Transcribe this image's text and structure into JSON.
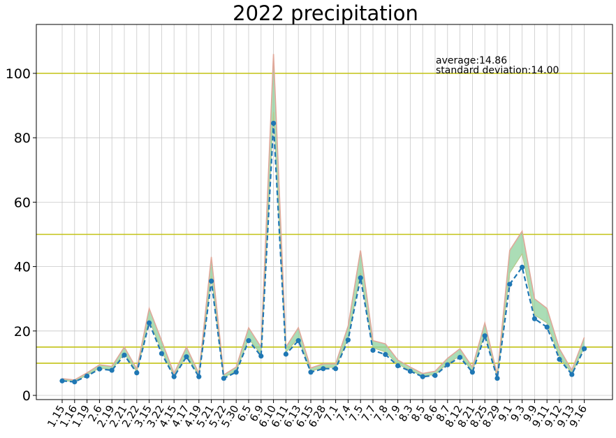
{
  "chart_data": {
    "type": "line",
    "title": "2022 precipitation",
    "xlabel": "",
    "ylabel": "",
    "ylim": [
      0,
      115
    ],
    "yticks": [
      0,
      20,
      40,
      60,
      80,
      100
    ],
    "grid": true,
    "reference_lines": [
      10,
      15,
      50,
      100
    ],
    "annotations": [
      "average:14.86",
      "standard deviation:14.00"
    ],
    "categories": [
      "1.15",
      "1.16",
      "1.19",
      "2.6",
      "2.19",
      "2.21",
      "2.22",
      "3.15",
      "3.22",
      "4.15",
      "4.17",
      "4.19",
      "5.21",
      "5.22",
      "5.30",
      "6.5",
      "6.9",
      "6.10",
      "6.11",
      "6.13",
      "6.15",
      "6.28",
      "7.1",
      "7.4",
      "7.5",
      "7.7",
      "7.8",
      "7.9",
      "8.3",
      "8.5",
      "8.6",
      "8.7",
      "8.12",
      "8.21",
      "8.25",
      "8.29",
      "9.1",
      "9.3",
      "9.9",
      "9.11",
      "9.12",
      "9.13",
      "9.16"
    ],
    "series": [
      {
        "values": [
          4.5,
          4.2,
          6.0,
          8.2,
          7.8,
          12.5,
          7.0,
          22.5,
          13.0,
          5.8,
          12.0,
          5.8,
          35.5,
          5.3,
          7.2,
          17.0,
          12.2,
          84.5,
          12.8,
          17.0,
          7.2,
          8.3,
          8.3,
          17.2,
          36.5,
          14.0,
          12.7,
          9.2,
          7.5,
          5.8,
          6.2,
          9.5,
          11.8,
          7.2,
          18.5,
          5.3,
          34.5,
          39.8,
          23.8,
          21.2,
          11.2,
          6.5,
          14.5
        ]
      },
      {
        "values": [
          5.2,
          4.8,
          7.0,
          9.5,
          9.0,
          15.0,
          8.2,
          27.0,
          17.0,
          6.8,
          15.0,
          6.8,
          43.0,
          6.4,
          8.8,
          21.0,
          15.0,
          106.0,
          15.0,
          21.0,
          8.5,
          9.8,
          9.8,
          21.5,
          45.0,
          17.0,
          16.0,
          11.0,
          8.8,
          6.8,
          7.5,
          11.5,
          14.5,
          8.8,
          22.5,
          6.4,
          45.0,
          51.0,
          30.0,
          27.0,
          14.5,
          7.8,
          18.0
        ]
      },
      {
        "values": [
          4.6,
          4.3,
          6.3,
          8.5,
          8.0,
          13.0,
          7.3,
          23.5,
          13.8,
          6.0,
          12.5,
          6.0,
          37.0,
          5.6,
          7.6,
          17.6,
          12.8,
          88.0,
          13.4,
          17.8,
          7.5,
          8.7,
          8.7,
          17.8,
          38.0,
          14.8,
          13.5,
          9.7,
          7.8,
          6.0,
          6.5,
          9.9,
          12.3,
          7.5,
          19.2,
          5.6,
          38.0,
          44.0,
          25.0,
          22.5,
          12.0,
          6.8,
          15.0
        ]
      }
    ]
  }
}
